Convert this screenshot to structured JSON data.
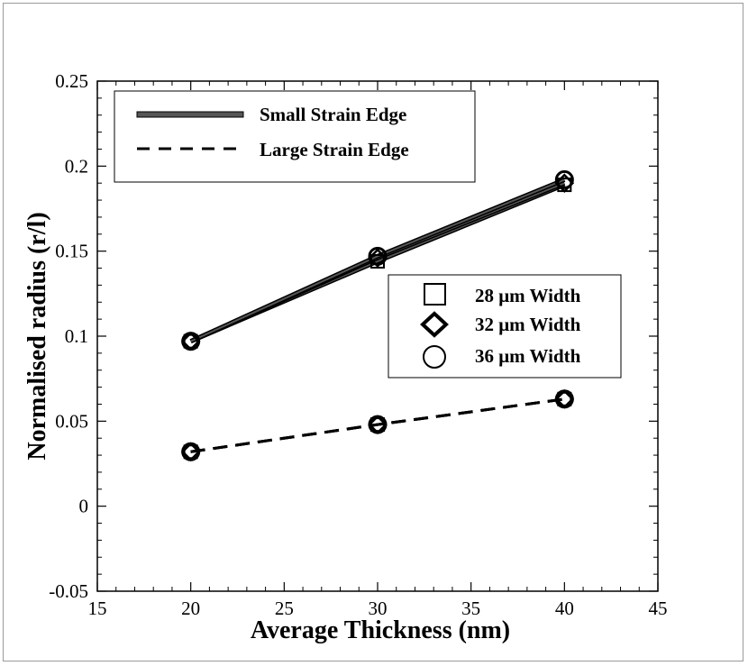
{
  "chart_data": {
    "type": "line",
    "title": "",
    "xlabel": "Average Thickness (nm)",
    "ylabel": "Normalised radius (r/l)",
    "xlim": [
      15,
      45
    ],
    "ylim": [
      -0.05,
      0.25
    ],
    "xticks": [
      "15",
      "20",
      "25",
      "30",
      "35",
      "40",
      "45"
    ],
    "yticks": [
      "-0.05",
      "0",
      "0.05",
      "0.1",
      "0.15",
      "0.2",
      "0.25"
    ],
    "x": [
      20,
      30,
      40
    ],
    "line_legend": [
      "Small Strain Edge",
      "Large Strain Edge"
    ],
    "marker_legend": [
      "28 μm Width",
      "32 μm Width",
      "36 μm Width"
    ],
    "series": [
      {
        "name": "Small Strain Edge, 28 μm Width",
        "edge": "small",
        "marker": "square",
        "values": [
          0.097,
          0.144,
          0.189
        ]
      },
      {
        "name": "Small Strain Edge, 32 μm Width",
        "edge": "small",
        "marker": "diamond",
        "values": [
          0.097,
          0.146,
          0.19
        ]
      },
      {
        "name": "Small Strain Edge, 36 μm Width",
        "edge": "small",
        "marker": "circle",
        "values": [
          0.097,
          0.147,
          0.192
        ]
      },
      {
        "name": "Large Strain Edge, 28 μm Width",
        "edge": "large",
        "marker": "square",
        "values": [
          0.032,
          0.048,
          0.063
        ]
      },
      {
        "name": "Large Strain Edge, 32 μm Width",
        "edge": "large",
        "marker": "diamond",
        "values": [
          0.032,
          0.048,
          0.063
        ]
      },
      {
        "name": "Large Strain Edge, 36 μm Width",
        "edge": "large",
        "marker": "circle",
        "values": [
          0.032,
          0.048,
          0.063
        ]
      }
    ],
    "grid": false,
    "legend_position": "top-left and center-right"
  },
  "colors": {
    "line": "#000000",
    "small_edge_fill": "#555555",
    "frame": "#9a9a9a"
  }
}
